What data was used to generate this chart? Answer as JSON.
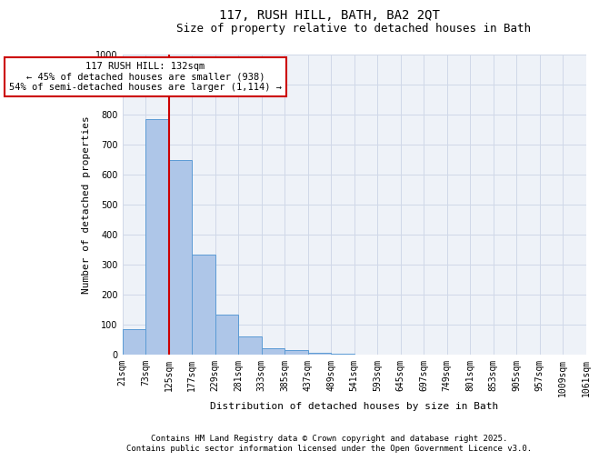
{
  "title_line1": "117, RUSH HILL, BATH, BA2 2QT",
  "title_line2": "Size of property relative to detached houses in Bath",
  "xlabel": "Distribution of detached houses by size in Bath",
  "ylabel": "Number of detached properties",
  "bar_values": [
    83,
    783,
    648,
    333,
    133,
    58,
    20,
    13,
    5,
    1,
    0,
    0,
    0,
    0,
    0,
    0,
    0,
    0,
    0,
    0
  ],
  "bin_labels": [
    "21sqm",
    "73sqm",
    "125sqm",
    "177sqm",
    "229sqm",
    "281sqm",
    "333sqm",
    "385sqm",
    "437sqm",
    "489sqm",
    "541sqm",
    "593sqm",
    "645sqm",
    "697sqm",
    "749sqm",
    "801sqm",
    "853sqm",
    "905sqm",
    "957sqm",
    "1009sqm",
    "1061sqm"
  ],
  "bar_color": "#aec6e8",
  "bar_edge_color": "#5b9bd5",
  "vline_color": "#cc0000",
  "annotation_text": "117 RUSH HILL: 132sqm\n← 45% of detached houses are smaller (938)\n54% of semi-detached houses are larger (1,114) →",
  "annotation_box_color": "#cc0000",
  "ylim": [
    0,
    1000
  ],
  "yticks": [
    0,
    100,
    200,
    300,
    400,
    500,
    600,
    700,
    800,
    900,
    1000
  ],
  "grid_color": "#d0d8e8",
  "bg_color": "#eef2f8",
  "footer_line1": "Contains HM Land Registry data © Crown copyright and database right 2025.",
  "footer_line2": "Contains public sector information licensed under the Open Government Licence v3.0.",
  "title_fontsize": 10,
  "subtitle_fontsize": 9,
  "axis_label_fontsize": 8,
  "tick_fontsize": 7,
  "annotation_fontsize": 7.5,
  "footer_fontsize": 6.5
}
